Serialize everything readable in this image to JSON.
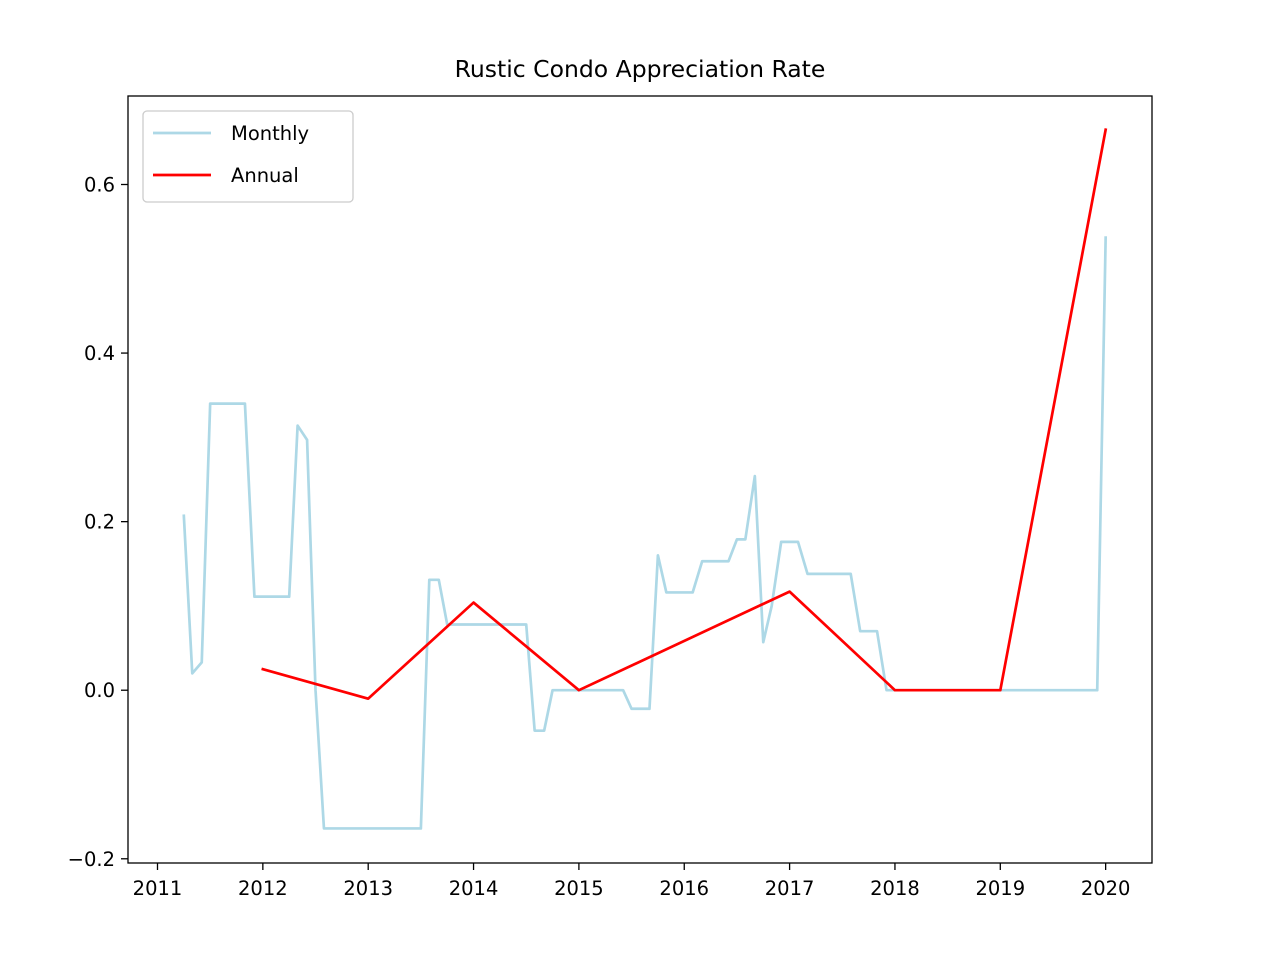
{
  "chart_data": {
    "type": "line",
    "title": "Rustic Condo Appreciation Rate",
    "xlabel": "",
    "ylabel": "",
    "xlim": [
      2010.72,
      2020.44
    ],
    "ylim": [
      -0.205,
      0.705
    ],
    "x_ticks": [
      {
        "value": 2011,
        "label": "2011"
      },
      {
        "value": 2012,
        "label": "2012"
      },
      {
        "value": 2013,
        "label": "2013"
      },
      {
        "value": 2014,
        "label": "2014"
      },
      {
        "value": 2015,
        "label": "2015"
      },
      {
        "value": 2016,
        "label": "2016"
      },
      {
        "value": 2017,
        "label": "2017"
      },
      {
        "value": 2018,
        "label": "2018"
      },
      {
        "value": 2019,
        "label": "2019"
      },
      {
        "value": 2020,
        "label": "2020"
      }
    ],
    "y_ticks": [
      {
        "value": -0.2,
        "label": "−0.2"
      },
      {
        "value": 0.0,
        "label": "0.0"
      },
      {
        "value": 0.2,
        "label": "0.2"
      },
      {
        "value": 0.4,
        "label": "0.4"
      },
      {
        "value": 0.6,
        "label": "0.6"
      }
    ],
    "grid": false,
    "legend": {
      "position": "top-left"
    },
    "series": [
      {
        "name": "Monthly",
        "color": "#add8e6",
        "points": [
          [
            2011.25,
            0.207
          ],
          [
            2011.33,
            0.02
          ],
          [
            2011.42,
            0.033
          ],
          [
            2011.5,
            0.34
          ],
          [
            2011.58,
            0.34
          ],
          [
            2011.67,
            0.34
          ],
          [
            2011.75,
            0.34
          ],
          [
            2011.83,
            0.34
          ],
          [
            2011.92,
            0.111
          ],
          [
            2012.0,
            0.111
          ],
          [
            2012.08,
            0.111
          ],
          [
            2012.17,
            0.111
          ],
          [
            2012.25,
            0.111
          ],
          [
            2012.33,
            0.314
          ],
          [
            2012.42,
            0.297
          ],
          [
            2012.5,
            0.0
          ],
          [
            2012.58,
            -0.164
          ],
          [
            2012.67,
            -0.164
          ],
          [
            2012.75,
            -0.164
          ],
          [
            2012.83,
            -0.164
          ],
          [
            2012.92,
            -0.164
          ],
          [
            2013.0,
            -0.164
          ],
          [
            2013.08,
            -0.164
          ],
          [
            2013.17,
            -0.164
          ],
          [
            2013.25,
            -0.164
          ],
          [
            2013.33,
            -0.164
          ],
          [
            2013.42,
            -0.164
          ],
          [
            2013.5,
            -0.164
          ],
          [
            2013.58,
            0.131
          ],
          [
            2013.67,
            0.131
          ],
          [
            2013.75,
            0.078
          ],
          [
            2013.83,
            0.078
          ],
          [
            2013.92,
            0.078
          ],
          [
            2014.0,
            0.078
          ],
          [
            2014.08,
            0.078
          ],
          [
            2014.17,
            0.078
          ],
          [
            2014.25,
            0.078
          ],
          [
            2014.33,
            0.078
          ],
          [
            2014.42,
            0.078
          ],
          [
            2014.5,
            0.078
          ],
          [
            2014.58,
            -0.048
          ],
          [
            2014.67,
            -0.048
          ],
          [
            2014.75,
            0.0
          ],
          [
            2014.83,
            0.0
          ],
          [
            2014.92,
            0.0
          ],
          [
            2015.0,
            0.0
          ],
          [
            2015.08,
            0.0
          ],
          [
            2015.17,
            0.0
          ],
          [
            2015.25,
            0.0
          ],
          [
            2015.33,
            0.0
          ],
          [
            2015.42,
            0.0
          ],
          [
            2015.5,
            -0.022
          ],
          [
            2015.58,
            -0.022
          ],
          [
            2015.67,
            -0.022
          ],
          [
            2015.75,
            0.16
          ],
          [
            2015.83,
            0.116
          ],
          [
            2015.92,
            0.116
          ],
          [
            2016.0,
            0.116
          ],
          [
            2016.08,
            0.116
          ],
          [
            2016.17,
            0.153
          ],
          [
            2016.25,
            0.153
          ],
          [
            2016.33,
            0.153
          ],
          [
            2016.42,
            0.153
          ],
          [
            2016.5,
            0.179
          ],
          [
            2016.58,
            0.179
          ],
          [
            2016.67,
            0.254
          ],
          [
            2016.75,
            0.057
          ],
          [
            2016.83,
            0.1
          ],
          [
            2016.92,
            0.176
          ],
          [
            2017.0,
            0.176
          ],
          [
            2017.08,
            0.176
          ],
          [
            2017.17,
            0.138
          ],
          [
            2017.25,
            0.138
          ],
          [
            2017.33,
            0.138
          ],
          [
            2017.42,
            0.138
          ],
          [
            2017.5,
            0.138
          ],
          [
            2017.58,
            0.138
          ],
          [
            2017.67,
            0.07
          ],
          [
            2017.75,
            0.07
          ],
          [
            2017.83,
            0.07
          ],
          [
            2017.92,
            0.0
          ],
          [
            2018.0,
            0.0
          ],
          [
            2019.0,
            0.0
          ],
          [
            2019.92,
            0.0
          ],
          [
            2020.0,
            0.537
          ]
        ]
      },
      {
        "name": "Annual",
        "color": "#ff0000",
        "points": [
          [
            2012,
            0.025
          ],
          [
            2013,
            -0.01
          ],
          [
            2014,
            0.104
          ],
          [
            2015,
            0.0
          ],
          [
            2017,
            0.117
          ],
          [
            2018,
            0.0
          ],
          [
            2019,
            0.0
          ],
          [
            2020,
            0.665
          ]
        ]
      }
    ]
  }
}
